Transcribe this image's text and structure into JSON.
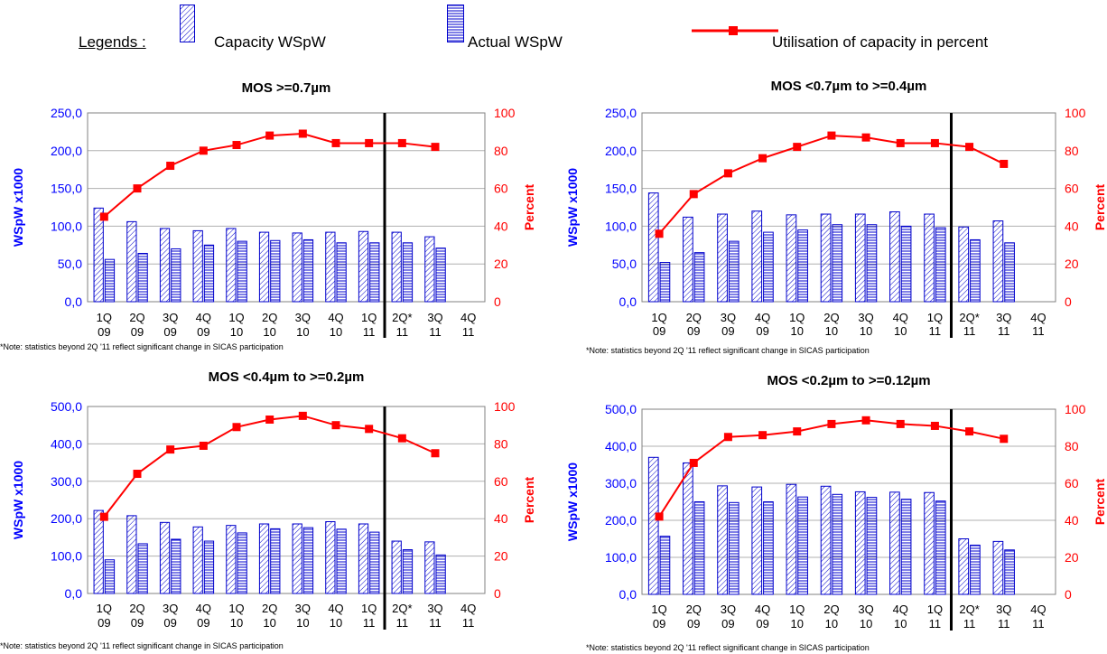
{
  "legend": {
    "title": "Legends :",
    "capacity_label": "Capacity  WSpW",
    "actual_label": "Actual  WSpW",
    "utilisation_label": "Utilisation of capacity in percent"
  },
  "colors": {
    "bar_stroke": "#0000cc",
    "capacity_hatch": "#0000cc",
    "actual_hatch": "#0000cc",
    "line": "#ff0000",
    "left_axis": "#0000ff",
    "right_axis": "#ff0000"
  },
  "chart_data": [
    {
      "type": "bar",
      "title": "MOS >=0.7µm",
      "ylabel": "WSpW x1000",
      "y2label": "Percent",
      "ylim": [
        0,
        250
      ],
      "yticks": [
        "0,0",
        "50,0",
        "100,0",
        "150,0",
        "200,0",
        "250,0"
      ],
      "y2lim": [
        0,
        100
      ],
      "y2ticks": [
        "0",
        "20",
        "40",
        "60",
        "80",
        "100"
      ],
      "categories": [
        [
          "1Q",
          "09"
        ],
        [
          "2Q",
          "09"
        ],
        [
          "3Q",
          "09"
        ],
        [
          "4Q",
          "09"
        ],
        [
          "1Q",
          "10"
        ],
        [
          "2Q",
          "10"
        ],
        [
          "3Q",
          "10"
        ],
        [
          "4Q",
          "10"
        ],
        [
          "1Q",
          "11"
        ],
        [
          "2Q*",
          "11"
        ],
        [
          "3Q",
          "11"
        ],
        [
          "4Q",
          "11"
        ]
      ],
      "divider_after_index": 8,
      "series": [
        {
          "name": "Capacity  WSpW",
          "axis": "left",
          "kind": "bar",
          "values": [
            124,
            106,
            97,
            94,
            97,
            92,
            91,
            92,
            93,
            92,
            86,
            null
          ]
        },
        {
          "name": "Actual  WSpW",
          "axis": "left",
          "kind": "bar",
          "values": [
            56,
            64,
            70,
            75,
            80,
            81,
            82,
            78,
            78,
            78,
            71,
            null
          ]
        },
        {
          "name": "Utilisation of capacity in percent",
          "axis": "right",
          "kind": "line",
          "values": [
            45,
            60,
            72,
            80,
            83,
            88,
            89,
            84,
            84,
            84,
            82,
            null
          ]
        }
      ],
      "note": "*Note:  statistics beyond 2Q '11 reflect significant change in SICAS participation"
    },
    {
      "type": "bar",
      "title": "MOS <0.7µm to >=0.4µm",
      "ylabel": "WSpW x1000",
      "y2label": "Percent",
      "ylim": [
        0,
        250
      ],
      "yticks": [
        "0,0",
        "50,0",
        "100,0",
        "150,0",
        "200,0",
        "250,0"
      ],
      "y2lim": [
        0,
        100
      ],
      "y2ticks": [
        "0",
        "20",
        "40",
        "60",
        "80",
        "100"
      ],
      "categories": [
        [
          "1Q",
          "09"
        ],
        [
          "2Q",
          "09"
        ],
        [
          "3Q",
          "09"
        ],
        [
          "4Q",
          "09"
        ],
        [
          "1Q",
          "10"
        ],
        [
          "2Q",
          "10"
        ],
        [
          "3Q",
          "10"
        ],
        [
          "4Q",
          "10"
        ],
        [
          "1Q",
          "11"
        ],
        [
          "2Q*",
          "11"
        ],
        [
          "3Q",
          "11"
        ],
        [
          "4Q",
          "11"
        ]
      ],
      "divider_after_index": 8,
      "series": [
        {
          "name": "Capacity  WSpW",
          "axis": "left",
          "kind": "bar",
          "values": [
            144,
            112,
            116,
            120,
            115,
            116,
            116,
            119,
            116,
            99,
            107,
            null
          ]
        },
        {
          "name": "Actual  WSpW",
          "axis": "left",
          "kind": "bar",
          "values": [
            52,
            65,
            80,
            92,
            95,
            102,
            102,
            100,
            98,
            82,
            78,
            null
          ]
        },
        {
          "name": "Utilisation of capacity in percent",
          "axis": "right",
          "kind": "line",
          "values": [
            36,
            57,
            68,
            76,
            82,
            88,
            87,
            84,
            84,
            82,
            73,
            null
          ]
        }
      ],
      "note": "*Note:  statistics beyond 2Q '11 reflect significant change in SICAS participation"
    },
    {
      "type": "bar",
      "title": "MOS <0.4µm to >=0.2µm",
      "ylabel": "WSpW x1000",
      "y2label": "Percent",
      "ylim": [
        0,
        500
      ],
      "yticks": [
        "0,0",
        "100,0",
        "200,0",
        "300,0",
        "400,0",
        "500,0"
      ],
      "y2lim": [
        0,
        100
      ],
      "y2ticks": [
        "0",
        "20",
        "40",
        "60",
        "80",
        "100"
      ],
      "categories": [
        [
          "1Q",
          "09"
        ],
        [
          "2Q",
          "09"
        ],
        [
          "3Q",
          "09"
        ],
        [
          "4Q",
          "09"
        ],
        [
          "1Q",
          "10"
        ],
        [
          "2Q",
          "10"
        ],
        [
          "3Q",
          "10"
        ],
        [
          "4Q",
          "10"
        ],
        [
          "1Q",
          "11"
        ],
        [
          "2Q*",
          "11"
        ],
        [
          "3Q",
          "11"
        ],
        [
          "4Q",
          "11"
        ]
      ],
      "divider_after_index": 8,
      "series": [
        {
          "name": "Capacity  WSpW",
          "axis": "left",
          "kind": "bar",
          "values": [
            222,
            208,
            190,
            178,
            182,
            186,
            186,
            192,
            186,
            140,
            138,
            null
          ]
        },
        {
          "name": "Actual  WSpW",
          "axis": "left",
          "kind": "bar",
          "values": [
            90,
            133,
            145,
            140,
            162,
            173,
            176,
            172,
            164,
            117,
            103,
            null
          ]
        },
        {
          "name": "Utilisation of capacity in percent",
          "axis": "right",
          "kind": "line",
          "values": [
            41,
            64,
            77,
            79,
            89,
            93,
            95,
            90,
            88,
            83,
            75,
            null
          ]
        }
      ],
      "note": "*Note:  statistics  beyond 2Q '11 reflect significant change in SICAS participation"
    },
    {
      "type": "bar",
      "title": "MOS <0.2µm to >=0.12µm",
      "ylabel": "WSpW x1000",
      "y2label": "Percent",
      "ylim": [
        0,
        500
      ],
      "yticks": [
        "0,0",
        "100,0",
        "200,0",
        "300,0",
        "400,0",
        "500,0"
      ],
      "y2lim": [
        0,
        100
      ],
      "y2ticks": [
        "0",
        "20",
        "40",
        "60",
        "80",
        "100"
      ],
      "categories": [
        [
          "1Q",
          "09"
        ],
        [
          "2Q",
          "09"
        ],
        [
          "3Q",
          "09"
        ],
        [
          "4Q",
          "09"
        ],
        [
          "1Q",
          "10"
        ],
        [
          "2Q",
          "10"
        ],
        [
          "3Q",
          "10"
        ],
        [
          "4Q",
          "10"
        ],
        [
          "1Q",
          "11"
        ],
        [
          "2Q*",
          "11"
        ],
        [
          "3Q",
          "11"
        ],
        [
          "4Q",
          "11"
        ]
      ],
      "divider_after_index": 8,
      "series": [
        {
          "name": "Capacity  WSpW",
          "axis": "left",
          "kind": "bar",
          "values": [
            370,
            355,
            293,
            290,
            297,
            292,
            277,
            276,
            275,
            150,
            143,
            null
          ]
        },
        {
          "name": "Actual  WSpW",
          "axis": "left",
          "kind": "bar",
          "values": [
            157,
            250,
            248,
            250,
            263,
            270,
            262,
            257,
            252,
            133,
            120,
            null
          ]
        },
        {
          "name": "Utilisation of capacity in percent",
          "axis": "right",
          "kind": "line",
          "values": [
            42,
            71,
            85,
            86,
            88,
            92,
            94,
            92,
            91,
            88,
            84,
            null
          ]
        }
      ],
      "note": "*Note:  statistics  beyond 2Q '11 reflect significant change in SICAS  participation"
    }
  ]
}
